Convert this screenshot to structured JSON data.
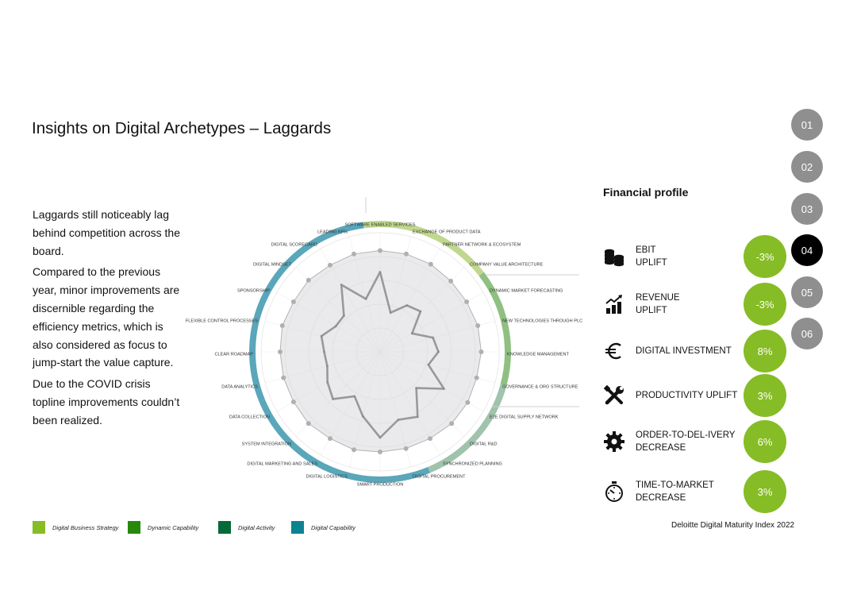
{
  "page": {
    "title": "Insights on Digital Archetypes – Laggards",
    "intro": [
      "Laggards still noticeably lag behind competition across the board.",
      "Compared to the previous year, minor improvements are discernible regarding the efficiency metrics, which is also considered as focus to jump-start the value capture.",
      "Due to the COVID crisis topline improvements couldn’t been realized."
    ],
    "source": "Deloitte Digital Maturity Index 2022"
  },
  "legend": [
    {
      "label": "Digital Business Strategy",
      "color": "#86bc25"
    },
    {
      "label": "Dynamic Capability",
      "color": "#26890d"
    },
    {
      "label": "Digital Activity",
      "color": "#046a38"
    },
    {
      "label": "Digital Capability",
      "color": "#0d8390"
    }
  ],
  "chart_data": {
    "type": "radar",
    "title": "",
    "categories": [
      "SOFTWARE ENABLED SERVICES",
      "EXCHANGE OF PRODUCT DATA",
      "PARTNER NETWORK & ECOSYSTEM",
      "COMPANY VALUE ARCHITECTURE",
      "DYNAMIC MARKET FORECASTING",
      "NEW TECHNOLOGIES THROUGH PLC",
      "KNOWLEDGE MANAGEMENT",
      "GOVERNANCE & ORG STRUCTURE",
      "E2E DIGITAL SUPPLY NETWORK",
      "DIGITAL R&D",
      "SYNCHRONIZED PLANNING",
      "DIGITAL PROCUREMENT",
      "SMART PRODUCTION",
      "DIGITAL LOGISTICS",
      "DIGITAL MARKETING AND SALES",
      "SYSTEM INTEGRATION",
      "DATA COLLECTION",
      "DATA ANALYTICS",
      "CLEAR ROADMAP",
      "FLEXIBLE CONTROL PROCESSES",
      "SPONSORSHIP",
      "DIGITAL MINDSET",
      "DIGITAL SCORECARD",
      "LEADING KPIs"
    ],
    "series": [
      {
        "values": [
          0.67,
          0.34,
          0.45,
          0.48,
          0.31,
          0.46,
          0.49,
          0.42,
          0.62,
          0.43,
          0.63,
          0.59,
          0.72,
          0.56,
          0.43,
          0.56,
          0.51,
          0.46,
          0.47,
          0.51,
          0.43,
          0.43,
          0.65,
          0.46
        ],
        "color": "#999999"
      },
      {
        "values": [
          0.85,
          0.85,
          0.85,
          0.84,
          0.84,
          0.85,
          0.85,
          0.84,
          0.85,
          0.85,
          0.84,
          0.84,
          0.84,
          0.85,
          0.84,
          0.85,
          0.84,
          0.84,
          0.84,
          0.85,
          0.84,
          0.85,
          0.84,
          0.85
        ],
        "color": "#b3b3b3"
      }
    ],
    "ring_segments": [
      {
        "group": "Digital Business Strategy",
        "color": "#c0d88e"
      },
      {
        "group": "Dynamic Capability",
        "color": "#8fc081"
      },
      {
        "group": "Digital Activity",
        "color": "#9fc3ab"
      },
      {
        "group": "Digital Capability",
        "color": "#5aa6ba"
      }
    ]
  },
  "financial_profile": {
    "heading": "Financial profile",
    "metrics": [
      {
        "icon": "coins-icon",
        "label_line1": "EBIT",
        "label_line2": "UPLIFT",
        "value": "-3%"
      },
      {
        "icon": "growth-chart-icon",
        "label_line1": "REVENUE",
        "label_line2": "UPLIFT",
        "value": "-3%"
      },
      {
        "icon": "euro-icon",
        "label_line1": "DIGITAL INVESTMENT",
        "label_line2": "",
        "value": "8%"
      },
      {
        "icon": "tools-icon",
        "label_line1": "PRODUCTIVITY UPLIFT",
        "label_line2": "",
        "value": "3%"
      },
      {
        "icon": "gear-icon",
        "label_line1": "ORDER-TO-DEL-IVERY",
        "label_line2": "DECREASE",
        "value": "6%"
      },
      {
        "icon": "stopwatch-icon",
        "label_line1": "TIME-TO-MARKET",
        "label_line2": "DECREASE",
        "value": "3%"
      }
    ],
    "accent_color": "#86bc25"
  },
  "nav": {
    "items": [
      "01",
      "02",
      "03",
      "04",
      "05",
      "06"
    ],
    "active": "04"
  }
}
